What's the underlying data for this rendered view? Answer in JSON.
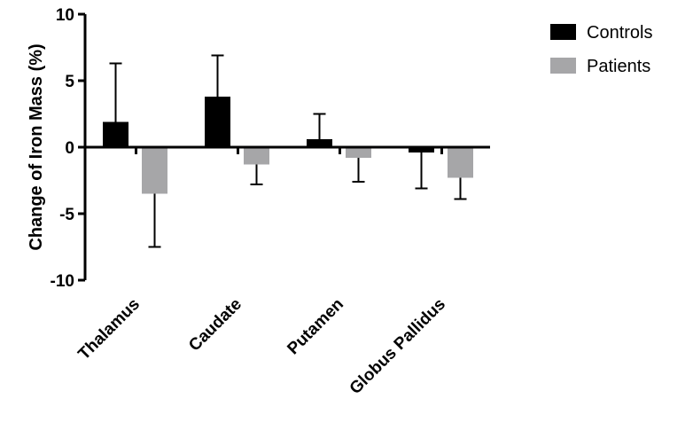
{
  "chart_data": {
    "type": "bar",
    "title": "",
    "xlabel": "",
    "ylabel": "Change of Iron Mass (%)",
    "ylim": [
      -10,
      10
    ],
    "yticks": [
      10,
      5,
      0,
      -5,
      -10
    ],
    "categories": [
      "Thalamus",
      "Caudate",
      "Putamen",
      "Globus Pallidus"
    ],
    "series": [
      {
        "name": "Controls",
        "color": "#000000",
        "values": [
          1.9,
          3.8,
          0.6,
          -0.4
        ],
        "error": [
          4.4,
          3.1,
          1.9,
          2.7
        ]
      },
      {
        "name": "Patients",
        "color": "#a6a6a8",
        "values": [
          -3.5,
          -1.3,
          -0.8,
          -2.3
        ],
        "error": [
          4.0,
          1.5,
          1.8,
          1.6
        ]
      }
    ],
    "legend": {
      "position": "top-right"
    },
    "grid": false
  }
}
